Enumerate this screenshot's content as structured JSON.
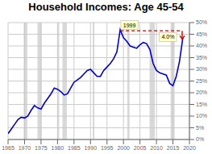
{
  "chart_data": {
    "type": "line",
    "title": "Household Incomes: Age 45-54",
    "x": [
      1965,
      1966,
      1967,
      1968,
      1969,
      1970,
      1971,
      1972,
      1973,
      1974,
      1975,
      1976,
      1977,
      1978,
      1979,
      1980,
      1981,
      1982,
      1983,
      1984,
      1985,
      1986,
      1987,
      1988,
      1989,
      1990,
      1991,
      1992,
      1993,
      1994,
      1995,
      1996,
      1997,
      1998,
      1999,
      2000,
      2001,
      2002,
      2003,
      2004,
      2005,
      2006,
      2007,
      2008,
      2009,
      2010,
      2011,
      2012,
      2013,
      2014,
      2015,
      2016,
      2017,
      2018
    ],
    "values": [
      2.5,
      4.5,
      6.5,
      8.5,
      9.5,
      9.2,
      10.0,
      12.5,
      14.5,
      13.5,
      13.0,
      15.5,
      17.5,
      19.5,
      22.0,
      21.5,
      20.5,
      19.0,
      19.5,
      22.0,
      24.5,
      25.5,
      26.5,
      28.0,
      29.5,
      30.0,
      28.5,
      27.0,
      27.0,
      29.5,
      31.0,
      32.5,
      34.5,
      37.5,
      47.0,
      43.5,
      42.0,
      40.0,
      39.5,
      39.0,
      40.5,
      41.5,
      41.0,
      38.5,
      32.5,
      29.5,
      28.5,
      28.0,
      27.5,
      24.0,
      23.0,
      27.0,
      33.5,
      43.5
    ],
    "color": "#0000cc",
    "xlim": [
      1965,
      2020
    ],
    "xticks": [
      1965,
      1970,
      1975,
      1980,
      1985,
      1990,
      1995,
      2000,
      2005,
      2010,
      2015,
      2020
    ],
    "ylim": [
      0,
      50
    ],
    "yticks": [
      {
        "value": 0,
        "label": "0%"
      },
      {
        "value": 5,
        "label": "5%"
      },
      {
        "value": 10,
        "label": "10%"
      },
      {
        "value": 15,
        "label": "15%"
      },
      {
        "value": 20,
        "label": "20%"
      },
      {
        "value": 25,
        "label": "25%"
      },
      {
        "value": 30,
        "label": "30%"
      },
      {
        "value": 35,
        "label": "35%"
      },
      {
        "value": 40,
        "label": "40%"
      },
      {
        "value": 45,
        "label": "45%"
      },
      {
        "value": 50,
        "label": "50%"
      }
    ],
    "grid": true,
    "recessions": {
      "spans": [
        [
          1969.75,
          1970.83
        ],
        [
          1973.92,
          1975.17
        ],
        [
          1980.0,
          1980.5
        ],
        [
          1981.5,
          1982.83
        ],
        [
          1990.67,
          1991.17
        ],
        [
          2001.17,
          2001.83
        ],
        [
          2007.92,
          2009.5
        ],
        [
          2014.3,
          2015.5
        ]
      ],
      "color": "#c8c8c8"
    },
    "reference_line": {
      "y": 46.5,
      "x": [
        1999,
        2017.5
      ],
      "color": "#cc0000",
      "line_style": "dashed"
    },
    "arrow": {
      "x": 2017.8,
      "y": [
        46.5,
        43.0
      ],
      "color": "#cc0000"
    },
    "annotations": [
      {
        "text": "1999",
        "x": 1999.2,
        "y": 47.0,
        "align": "left"
      },
      {
        "text": "4.0%",
        "x": 2013.5,
        "y": 43.8,
        "align": "center"
      }
    ]
  }
}
